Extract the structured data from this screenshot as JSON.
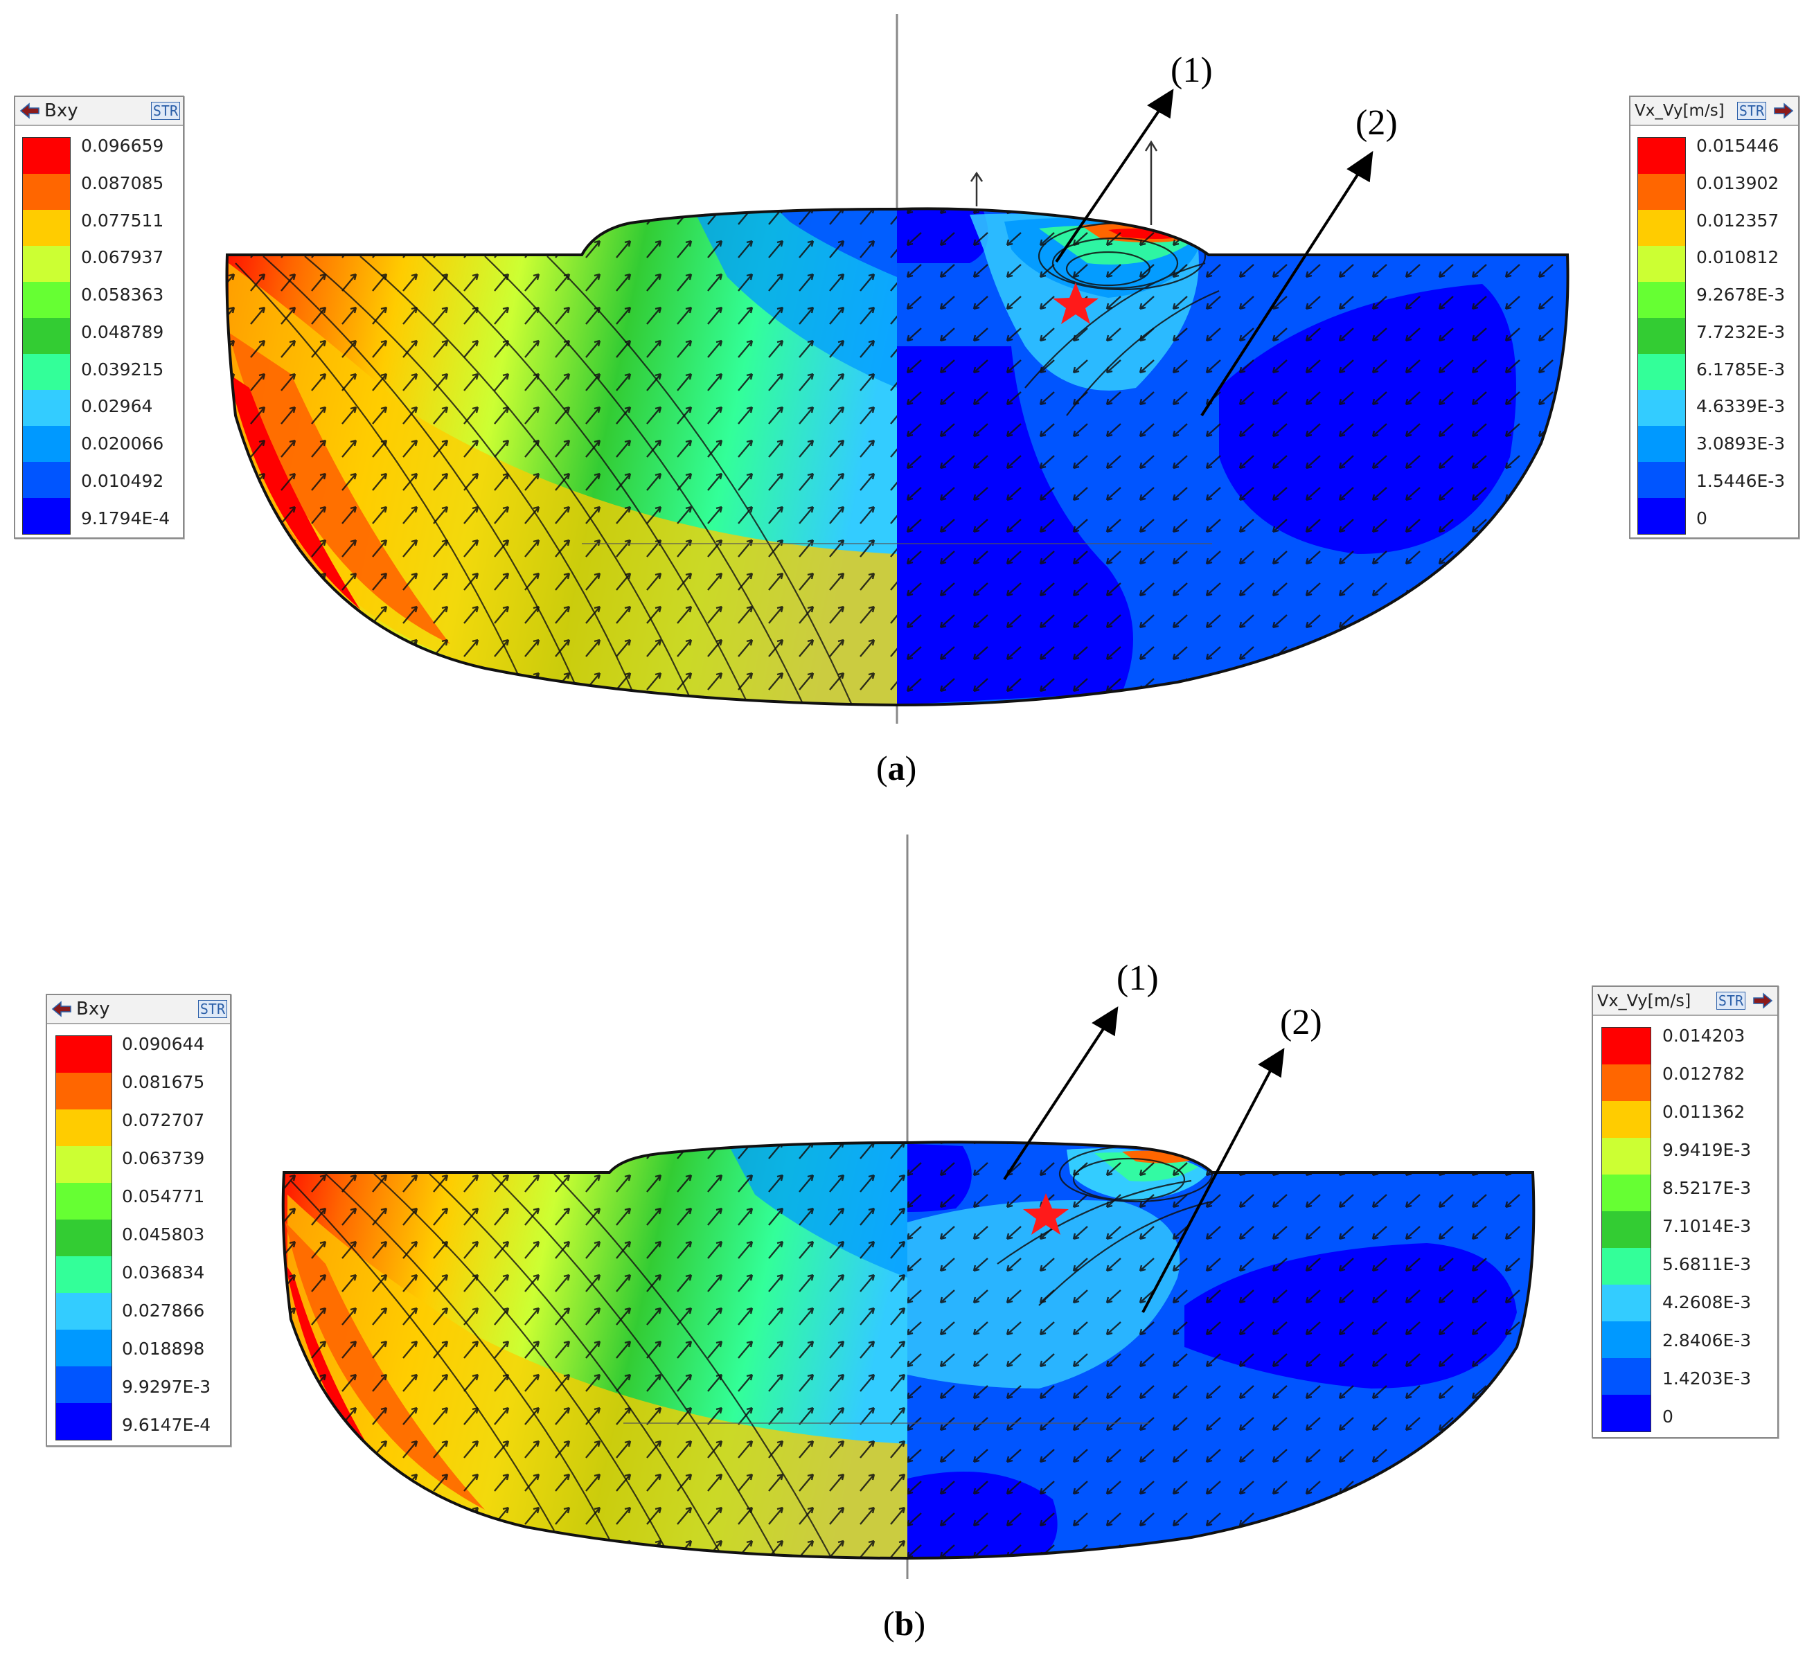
{
  "figure": {
    "panels": [
      {
        "id": "a",
        "caption_open": "(",
        "caption_letter": "a",
        "caption_close": ")",
        "left_legend": {
          "title": "Bxy",
          "badge": "STR",
          "values": [
            "0.096659",
            "0.087085",
            "0.077511",
            "0.067937",
            "0.058363",
            "0.048789",
            "0.039215",
            "0.02964",
            "0.020066",
            "0.010492",
            "9.1794E-4"
          ]
        },
        "right_legend": {
          "title": "Vx_Vy[m/s]",
          "badge": "STR",
          "values": [
            "0.015446",
            "0.013902",
            "0.012357",
            "0.010812",
            "9.2678E-3",
            "7.7232E-3",
            "6.1785E-3",
            "4.6339E-3",
            "3.0893E-3",
            "1.5446E-3",
            "0"
          ]
        },
        "annotations": [
          "(1)",
          "(2)"
        ]
      },
      {
        "id": "b",
        "caption_open": "(",
        "caption_letter": "b",
        "caption_close": ")",
        "left_legend": {
          "title": "Bxy",
          "badge": "STR",
          "values": [
            "0.090644",
            "0.081675",
            "0.072707",
            "0.063739",
            "0.054771",
            "0.045803",
            "0.036834",
            "0.027866",
            "0.018898",
            "9.9297E-3",
            "9.6147E-4"
          ]
        },
        "right_legend": {
          "title": "Vx_Vy[m/s]",
          "badge": "STR",
          "values": [
            "0.014203",
            "0.012782",
            "0.011362",
            "9.9419E-3",
            "8.5217E-3",
            "7.1014E-3",
            "5.6811E-3",
            "4.2608E-3",
            "2.8406E-3",
            "1.4203E-3",
            "0"
          ]
        },
        "annotations": [
          "(1)",
          "(2)"
        ]
      }
    ],
    "colors": {
      "scale": [
        "#ff0000",
        "#ff6600",
        "#ffcc00",
        "#ccff33",
        "#66ff33",
        "#33cc33",
        "#33ff99",
        "#33ccff",
        "#0099ff",
        "#0055ff",
        "#0000ff"
      ],
      "marker": "#ff1a1a"
    }
  }
}
